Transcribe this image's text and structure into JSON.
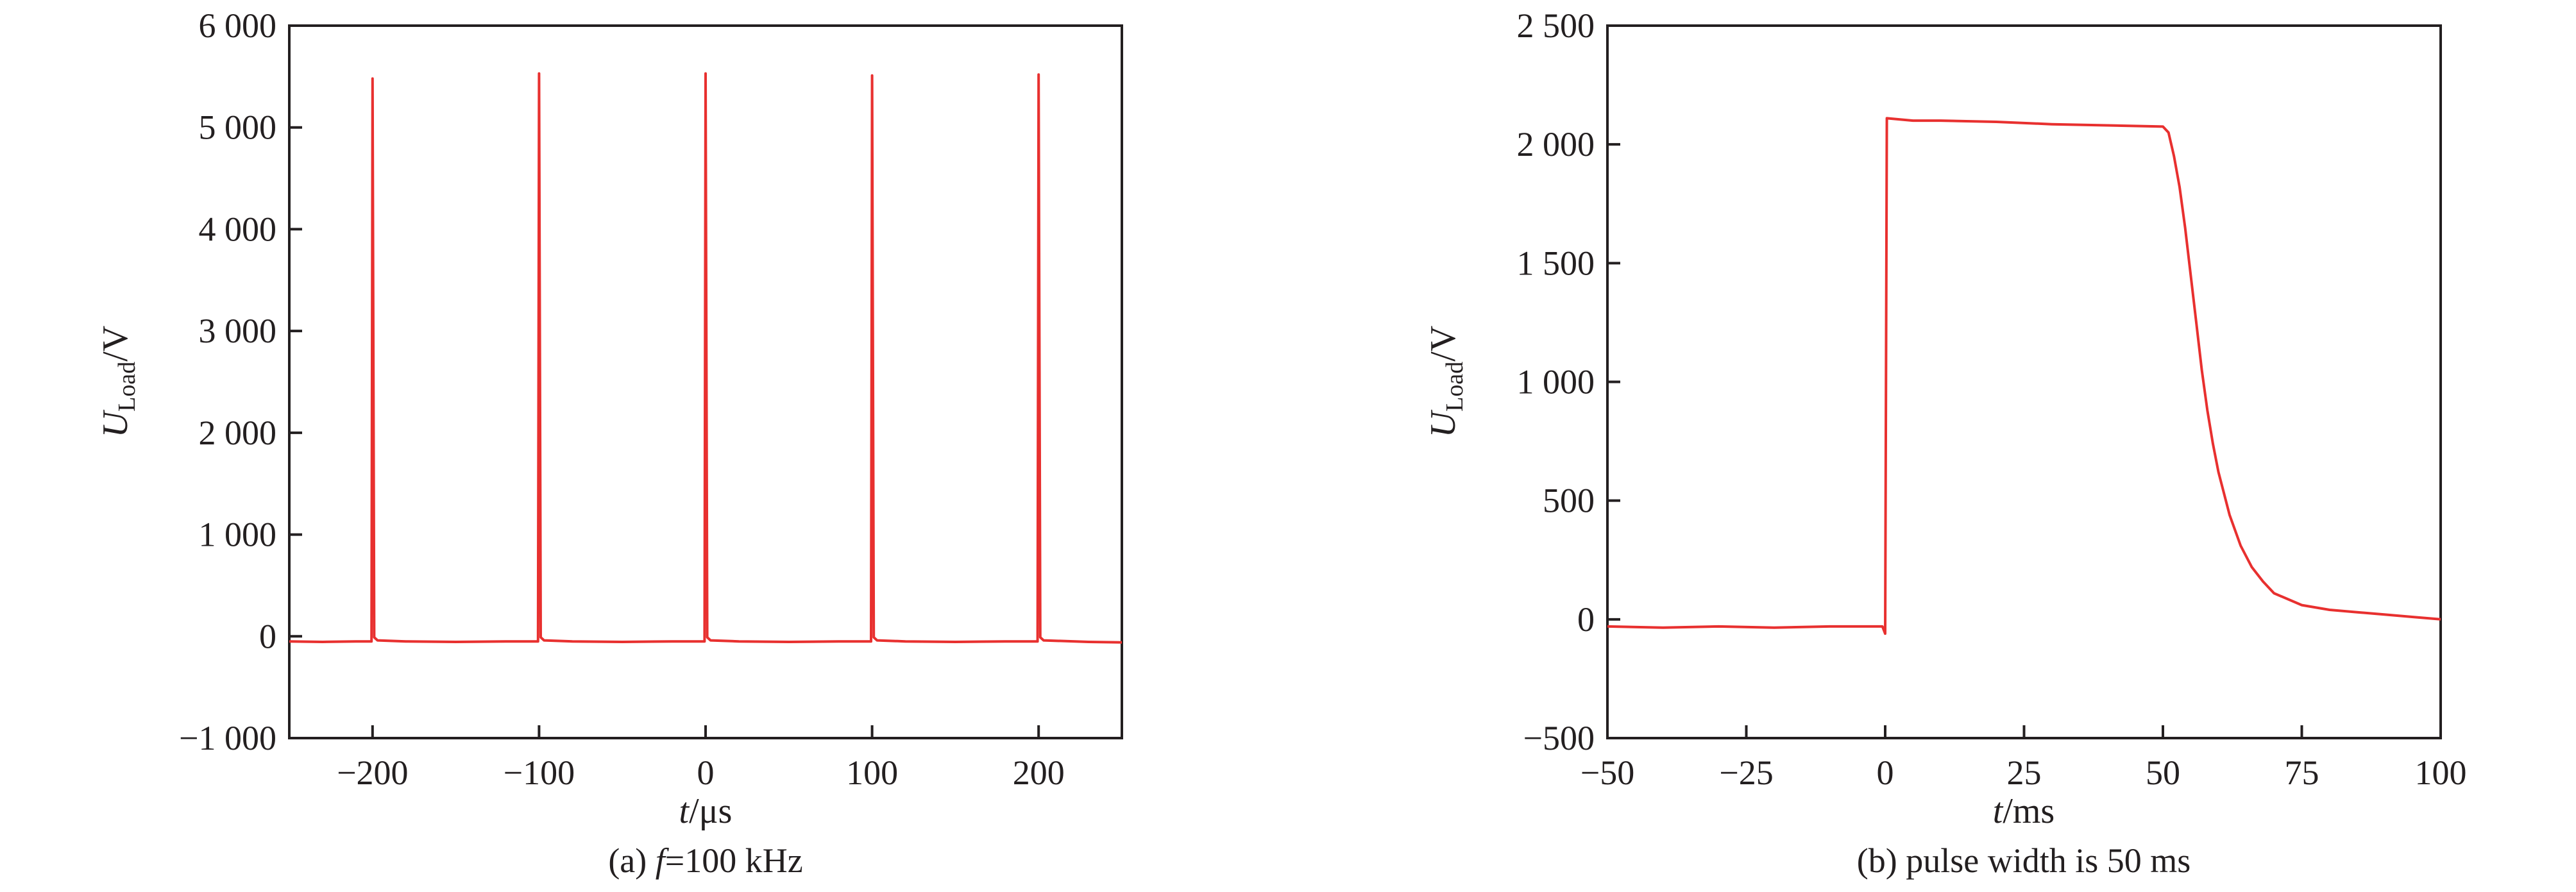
{
  "chart_data": [
    {
      "type": "line",
      "caption": "(a) f=100 kHz",
      "caption_parts": {
        "prefix": "(a) ",
        "italic": "f",
        "suffix": "=100 kHz"
      },
      "xlabel": {
        "italic": "t",
        "rest": "/μs"
      },
      "ylabel": {
        "italic": "U",
        "sub": "Load",
        "rest": "/V"
      },
      "xlim": [
        -250,
        250
      ],
      "ylim": [
        -1000,
        6000
      ],
      "xticks": [
        -200,
        -100,
        0,
        100,
        200
      ],
      "xtick_labels": [
        "−200",
        "−100",
        "0",
        "100",
        "200"
      ],
      "yticks": [
        -1000,
        0,
        1000,
        2000,
        3000,
        4000,
        5000,
        6000
      ],
      "ytick_labels": [
        "−1 000",
        "0",
        "1 000",
        "2 000",
        "3 000",
        "4 000",
        "5 000",
        "6 000"
      ],
      "grid": false,
      "color": "#e8302f",
      "series": [
        {
          "x": [
            -250,
            -230,
            -210,
            -200.6,
            -200,
            -199,
            -197,
            -180,
            -150,
            -120,
            -100.6,
            -100,
            -99,
            -97,
            -80,
            -50,
            -20,
            -0.6,
            0,
            1,
            3,
            20,
            50,
            80,
            99.4,
            100,
            101,
            103,
            120,
            150,
            180,
            199.4,
            200,
            201,
            203,
            230,
            250
          ],
          "y": [
            -50,
            -55,
            -50,
            -50,
            5480,
            -10,
            -40,
            -50,
            -55,
            -50,
            -50,
            5530,
            -10,
            -40,
            -50,
            -55,
            -50,
            -50,
            5530,
            -10,
            -40,
            -50,
            -55,
            -50,
            -50,
            5510,
            -10,
            -40,
            -50,
            -55,
            -50,
            -50,
            5520,
            -10,
            -40,
            -55,
            -60
          ]
        }
      ]
    },
    {
      "type": "line",
      "caption": "(b) pulse width is 50 ms",
      "xlabel": {
        "italic": "t",
        "rest": "/ms"
      },
      "ylabel": {
        "italic": "U",
        "sub": "Load",
        "rest": "/V"
      },
      "xlim": [
        -50,
        100
      ],
      "ylim": [
        -500,
        2500
      ],
      "xticks": [
        -50,
        -25,
        0,
        25,
        50,
        75,
        100
      ],
      "xtick_labels": [
        "−50",
        "−25",
        "0",
        "25",
        "50",
        "75",
        "100"
      ],
      "yticks": [
        -500,
        0,
        500,
        1000,
        1500,
        2000,
        2500
      ],
      "ytick_labels": [
        "−500",
        "0",
        "500",
        "1 000",
        "1 500",
        "2 000",
        "2 500"
      ],
      "grid": false,
      "color": "#e8302f",
      "series": [
        {
          "x": [
            -50,
            -40,
            -30,
            -20,
            -10,
            -0.5,
            0,
            0.3,
            5,
            10,
            20,
            30,
            40,
            50,
            51,
            52,
            53,
            54,
            55,
            56,
            57,
            58,
            59,
            60,
            62,
            64,
            66,
            68,
            70,
            75,
            80,
            85,
            90,
            95,
            100
          ],
          "y": [
            -30,
            -35,
            -30,
            -35,
            -30,
            -30,
            -60,
            2110,
            2100,
            2100,
            2095,
            2085,
            2080,
            2075,
            2050,
            1950,
            1820,
            1650,
            1450,
            1250,
            1050,
            880,
            740,
            620,
            440,
            310,
            220,
            160,
            110,
            60,
            40,
            30,
            20,
            10,
            0
          ]
        }
      ]
    }
  ]
}
